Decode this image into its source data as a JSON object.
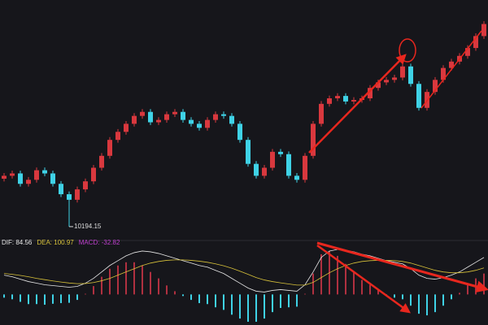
{
  "chart_data": [
    {
      "type": "candlestick",
      "up_color": "#d9383e",
      "down_color": "#3fd2e6",
      "ylim": [
        10100,
        11800
      ],
      "low_label": "10194.15",
      "open": [
        10540,
        10561,
        10578,
        10503,
        10532,
        10601,
        10578,
        10503,
        10428,
        10388,
        10463,
        10521,
        10619,
        10705,
        10820,
        10878,
        10936,
        10993,
        11022,
        10947,
        10964,
        11005,
        11022,
        10964,
        10936,
        10907,
        10964,
        11005,
        10993,
        10936,
        10820,
        10647,
        10561,
        10619,
        10734,
        10717,
        10561,
        10532,
        10705,
        10936,
        11080,
        11120,
        11137,
        11097,
        11108,
        11120,
        11195,
        11235,
        11253,
        11270,
        11350,
        11224,
        11051,
        11166,
        11253,
        11339,
        11385,
        11426,
        11483,
        11569
      ],
      "high": [
        10581,
        10598,
        10598,
        10552,
        10621,
        10621,
        10598,
        10523,
        10448,
        10483,
        10541,
        10639,
        10725,
        10840,
        10898,
        10956,
        11013,
        11042,
        11042,
        10984,
        11025,
        11042,
        11042,
        10984,
        10956,
        10984,
        11025,
        11025,
        11013,
        10956,
        10840,
        10667,
        10639,
        10754,
        10754,
        10737,
        10581,
        10725,
        10956,
        11100,
        11140,
        11157,
        11157,
        11128,
        11140,
        11215,
        11255,
        11273,
        11290,
        11370,
        11370,
        11244,
        11186,
        11273,
        11359,
        11405,
        11446,
        11503,
        11589,
        11676
      ],
      "low": [
        10520,
        10541,
        10483,
        10483,
        10512,
        10558,
        10483,
        10408,
        10194.15,
        10368,
        10443,
        10501,
        10599,
        10685,
        10800,
        10858,
        10916,
        10973,
        10927,
        10927,
        10944,
        10985,
        10944,
        10916,
        10887,
        10887,
        10944,
        10973,
        10916,
        10800,
        10627,
        10541,
        10541,
        10599,
        10697,
        10541,
        10512,
        10512,
        10685,
        10916,
        11060,
        11100,
        11077,
        11077,
        11088,
        11100,
        11175,
        11215,
        11233,
        11250,
        11204,
        11031,
        11031,
        11146,
        11233,
        11319,
        11365,
        11406,
        11463,
        11549
      ],
      "close": [
        10561,
        10578,
        10503,
        10532,
        10601,
        10578,
        10503,
        10428,
        10388,
        10463,
        10521,
        10619,
        10705,
        10820,
        10878,
        10936,
        10993,
        11022,
        10947,
        10964,
        11005,
        11022,
        10964,
        10936,
        10907,
        10964,
        11005,
        10993,
        10936,
        10820,
        10647,
        10561,
        10619,
        10734,
        10717,
        10561,
        10532,
        10705,
        10936,
        11080,
        11120,
        11137,
        11097,
        11108,
        11120,
        11195,
        11235,
        11253,
        11270,
        11350,
        11224,
        11051,
        11166,
        11253,
        11339,
        11385,
        11426,
        11483,
        11569,
        11656
      ]
    },
    {
      "type": "macd",
      "ylim": [
        -180,
        290
      ],
      "up_color": "#b03040",
      "down_color": "#3fd2e6",
      "series": [
        {
          "name": "DIF: 84.56",
          "color": "#e8e8e8",
          "values": [
            120,
            110,
            95,
            80,
            70,
            60,
            55,
            50,
            45,
            50,
            70,
            100,
            140,
            180,
            210,
            240,
            260,
            270,
            265,
            255,
            240,
            225,
            210,
            195,
            180,
            170,
            150,
            130,
            100,
            70,
            40,
            20,
            15,
            25,
            30,
            25,
            20,
            60,
            140,
            230,
            270,
            280,
            275,
            265,
            250,
            240,
            225,
            210,
            200,
            190,
            160,
            120,
            100,
            95,
            105,
            120,
            140,
            170,
            200,
            230
          ]
        },
        {
          "name": "DEA: 100.97",
          "color": "#d8c23a",
          "values": [
            130,
            125,
            118,
            110,
            100,
            92,
            84,
            77,
            71,
            67,
            68,
            74,
            85,
            100,
            120,
            140,
            160,
            180,
            195,
            205,
            212,
            215,
            215,
            212,
            207,
            200,
            190,
            178,
            163,
            145,
            125,
            105,
            90,
            80,
            72,
            65,
            58,
            58,
            75,
            105,
            135,
            160,
            180,
            195,
            205,
            210,
            212,
            212,
            210,
            205,
            195,
            180,
            165,
            150,
            140,
            135,
            135,
            140,
            150,
            165
          ]
        },
        {
          "name": "MACD: -32.82",
          "color": "#c040d0",
          "values": [
            -20,
            -30,
            -46,
            -60,
            -60,
            -64,
            -58,
            -54,
            -52,
            -34,
            4,
            52,
            110,
            160,
            180,
            200,
            200,
            180,
            140,
            100,
            56,
            20,
            -10,
            -34,
            -54,
            -60,
            -80,
            -96,
            -126,
            -150,
            -170,
            -170,
            -150,
            -110,
            -84,
            -80,
            -76,
            4,
            130,
            250,
            270,
            240,
            190,
            140,
            90,
            60,
            26,
            -4,
            -20,
            -30,
            -70,
            -120,
            -130,
            -110,
            -70,
            -30,
            10,
            60,
            100,
            130
          ]
        }
      ]
    }
  ]
}
